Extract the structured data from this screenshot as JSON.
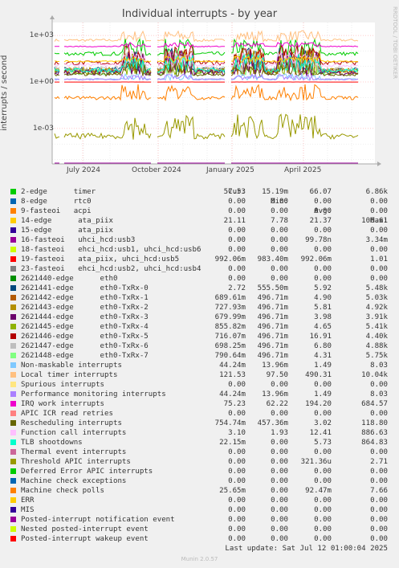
{
  "chart_data": {
    "type": "line",
    "title": "Individual interrupts - by year",
    "ylabel": "interrupts / second",
    "side_label": "RRDTOOL / TOBI OETIKER",
    "y_scale": "log",
    "y_ticks": [
      "1e+03",
      "1e+00",
      "1e-03"
    ],
    "x_ticks": [
      "July 2024",
      "October 2024",
      "January 2025",
      "April 2025"
    ],
    "grid": true,
    "columns": [
      "Cur:",
      "Min:",
      "Avg:",
      "Max:"
    ],
    "series": [
      {
        "name": "2-edge      timer",
        "color": "#00cc00",
        "cur": "57.53",
        "min": "15.19m",
        "avg": "66.07",
        "max": "6.86k"
      },
      {
        "name": "8-edge      rtc0",
        "color": "#0066b3",
        "cur": "0.00",
        "min": "0.00",
        "avg": "0.00",
        "max": "0.00"
      },
      {
        "name": "9-fasteoi   acpi",
        "color": "#ff8000",
        "cur": "0.00",
        "min": "0.00",
        "avg": "0.00",
        "max": "0.00"
      },
      {
        "name": "14-edge      ata_piix",
        "color": "#ffcc00",
        "cur": "21.11",
        "min": "7.78",
        "avg": "21.37",
        "max": "106.61"
      },
      {
        "name": "15-edge      ata_piix",
        "color": "#330099",
        "cur": "0.00",
        "min": "0.00",
        "avg": "0.00",
        "max": "0.00"
      },
      {
        "name": "16-fasteoi   uhci_hcd:usb3",
        "color": "#990099",
        "cur": "0.00",
        "min": "0.00",
        "avg": "99.78n",
        "max": "3.34m"
      },
      {
        "name": "18-fasteoi   ehci_hcd:usb1, uhci_hcd:usb6",
        "color": "#ccff00",
        "cur": "0.00",
        "min": "0.00",
        "avg": "0.00",
        "max": "0.00"
      },
      {
        "name": "19-fasteoi   ata_piix, uhci_hcd:usb5",
        "color": "#ff0000",
        "cur": "992.06m",
        "min": "983.40m",
        "avg": "992.06m",
        "max": "1.01"
      },
      {
        "name": "23-fasteoi   ehci_hcd:usb2, uhci_hcd:usb4",
        "color": "#808080",
        "cur": "0.00",
        "min": "0.00",
        "avg": "0.00",
        "max": "0.00"
      },
      {
        "name": "2621440-edge      eth0",
        "color": "#008f00",
        "cur": "0.00",
        "min": "0.00",
        "avg": "0.00",
        "max": "0.00"
      },
      {
        "name": "2621441-edge      eth0-TxRx-0",
        "color": "#00487d",
        "cur": "2.72",
        "min": "555.50m",
        "avg": "5.92",
        "max": "5.48k"
      },
      {
        "name": "2621442-edge      eth0-TxRx-1",
        "color": "#b35a00",
        "cur": "689.61m",
        "min": "496.71m",
        "avg": "4.90",
        "max": "5.03k"
      },
      {
        "name": "2621443-edge      eth0-TxRx-2",
        "color": "#b38f00",
        "cur": "727.93m",
        "min": "496.71m",
        "avg": "5.81",
        "max": "4.92k"
      },
      {
        "name": "2621444-edge      eth0-TxRx-3",
        "color": "#6b006b",
        "cur": "679.99m",
        "min": "496.71m",
        "avg": "3.98",
        "max": "3.91k"
      },
      {
        "name": "2621445-edge      eth0-TxRx-4",
        "color": "#8fb300",
        "cur": "855.82m",
        "min": "496.71m",
        "avg": "4.65",
        "max": "5.41k"
      },
      {
        "name": "2621446-edge      eth0-TxRx-5",
        "color": "#b30000",
        "cur": "716.07m",
        "min": "496.71m",
        "avg": "16.91",
        "max": "4.40k"
      },
      {
        "name": "2621447-edge      eth0-TxRx-6",
        "color": "#bebebe",
        "cur": "698.25m",
        "min": "496.71m",
        "avg": "6.80",
        "max": "4.88k"
      },
      {
        "name": "2621448-edge      eth0-TxRx-7",
        "color": "#80ff80",
        "cur": "790.64m",
        "min": "496.71m",
        "avg": "4.31",
        "max": "5.75k"
      },
      {
        "name": "Non-maskable interrupts",
        "color": "#80c9ff",
        "cur": "44.24m",
        "min": "13.96m",
        "avg": "1.49",
        "max": "8.03"
      },
      {
        "name": "Local timer interrupts",
        "color": "#ffc080",
        "cur": "121.53",
        "min": "97.50",
        "avg": "490.31",
        "max": "10.04k"
      },
      {
        "name": "Spurious interrupts",
        "color": "#ffe680",
        "cur": "0.00",
        "min": "0.00",
        "avg": "0.00",
        "max": "0.00"
      },
      {
        "name": "Performance monitoring interrupts",
        "color": "#aa80ff",
        "cur": "44.24m",
        "min": "13.96m",
        "avg": "1.49",
        "max": "8.03"
      },
      {
        "name": "IRQ work interrupts",
        "color": "#ee00cc",
        "cur": "75.23",
        "min": "62.22",
        "avg": "194.20",
        "max": "684.57"
      },
      {
        "name": "APIC ICR read retries",
        "color": "#ff8080",
        "cur": "0.00",
        "min": "0.00",
        "avg": "0.00",
        "max": "0.00"
      },
      {
        "name": "Rescheduling interrupts",
        "color": "#666600",
        "cur": "754.74m",
        "min": "457.36m",
        "avg": "3.02",
        "max": "118.80"
      },
      {
        "name": "Function call interrupts",
        "color": "#ffbfff",
        "cur": "3.10",
        "min": "1.93",
        "avg": "12.41",
        "max": "886.63"
      },
      {
        "name": "TLB shootdowns",
        "color": "#00ffcc",
        "cur": "22.15m",
        "min": "0.00",
        "avg": "5.73",
        "max": "864.83"
      },
      {
        "name": "Thermal event interrupts",
        "color": "#cc6699",
        "cur": "0.00",
        "min": "0.00",
        "avg": "0.00",
        "max": "0.00"
      },
      {
        "name": "Threshold APIC interrupts",
        "color": "#999900",
        "cur": "0.00",
        "min": "0.00",
        "avg": "321.36u",
        "max": "2.71"
      },
      {
        "name": "Deferred Error APIC interrupts",
        "color": "#00cc00",
        "cur": "0.00",
        "min": "0.00",
        "avg": "0.00",
        "max": "0.00"
      },
      {
        "name": "Machine check exceptions",
        "color": "#0066b3",
        "cur": "0.00",
        "min": "0.00",
        "avg": "0.00",
        "max": "0.00"
      },
      {
        "name": "Machine check polls",
        "color": "#ff8000",
        "cur": "25.65m",
        "min": "0.00",
        "avg": "92.47m",
        "max": "7.66"
      },
      {
        "name": "ERR",
        "color": "#ffcc00",
        "cur": "0.00",
        "min": "0.00",
        "avg": "0.00",
        "max": "0.00"
      },
      {
        "name": "MIS",
        "color": "#330099",
        "cur": "0.00",
        "min": "0.00",
        "avg": "0.00",
        "max": "0.00"
      },
      {
        "name": "Posted-interrupt notification event",
        "color": "#990099",
        "cur": "0.00",
        "min": "0.00",
        "avg": "0.00",
        "max": "0.00"
      },
      {
        "name": "Nested posted-interrupt event",
        "color": "#ccff00",
        "cur": "0.00",
        "min": "0.00",
        "avg": "0.00",
        "max": "0.00"
      },
      {
        "name": "Posted-interrupt wakeup event",
        "color": "#ff0000",
        "cur": "0.00",
        "min": "0.00",
        "avg": "0.00",
        "max": "0.00"
      }
    ]
  },
  "footer": {
    "last_update": "Last update: Sat Jul 12 01:00:04 2025",
    "generator": "Munin 2.0.57"
  }
}
